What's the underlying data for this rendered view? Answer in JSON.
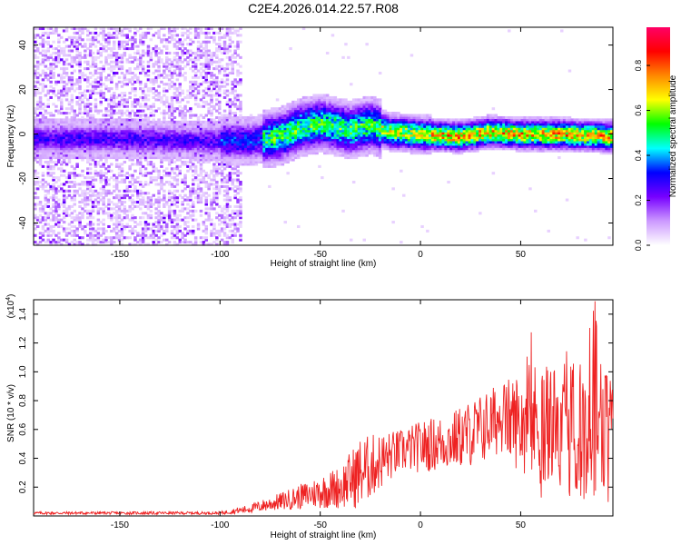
{
  "title": "C2E4.2026.014.22.57.R08",
  "chart_data": [
    {
      "type": "heatmap",
      "xlabel": "Height of straight line (km)",
      "ylabel": "Frequency (Hz)",
      "xlim": [
        -193,
        96
      ],
      "ylim": [
        -50,
        48
      ],
      "xticks": [
        -150,
        -100,
        -50,
        0,
        50
      ],
      "yticks": [
        -40,
        -20,
        0,
        20,
        40
      ],
      "colorbar": {
        "label": "Normalized spectral amplitude",
        "range": [
          0,
          0.97
        ],
        "ticks": [
          "0.0",
          "0.2",
          "0.4",
          "0.6",
          "0.8"
        ],
        "tick_values": [
          0.0,
          0.2,
          0.4,
          0.6,
          0.8
        ],
        "colors": [
          "#ffffff",
          "#cc99ff",
          "#7700ff",
          "#0000ff",
          "#00ffff",
          "#00ff00",
          "#ffff00",
          "#ff8800",
          "#ff0000",
          "#ff0066"
        ]
      },
      "ridge_center_hz": [
        {
          "x": -193,
          "y": -2
        },
        {
          "x": -150,
          "y": -2
        },
        {
          "x": -100,
          "y": -3
        },
        {
          "x": -85,
          "y": -3
        },
        {
          "x": -70,
          "y": -1
        },
        {
          "x": -60,
          "y": 3
        },
        {
          "x": -50,
          "y": 5
        },
        {
          "x": -45,
          "y": 4
        },
        {
          "x": -35,
          "y": 2
        },
        {
          "x": -25,
          "y": 4
        },
        {
          "x": -15,
          "y": 1
        },
        {
          "x": 0,
          "y": 0
        },
        {
          "x": 20,
          "y": -1
        },
        {
          "x": 35,
          "y": 1
        },
        {
          "x": 50,
          "y": 0
        },
        {
          "x": 70,
          "y": 0
        },
        {
          "x": 96,
          "y": -1
        }
      ],
      "background_noise_range_km": [
        -193,
        -90
      ]
    },
    {
      "type": "line",
      "color": "#ee2222",
      "xlabel": "Height of straight line (km)",
      "ylabel": "SNR (10 * v/v)",
      "scale_label": "(x10",
      "scale_exponent": "4",
      "scale_suffix": ")",
      "xlim": [
        -193,
        96
      ],
      "ylim": [
        0,
        1.5
      ],
      "xticks": [
        -150,
        -100,
        -50,
        0,
        50
      ],
      "yticks": [
        "0.2",
        "0.4",
        "0.6",
        "0.8",
        "1.0",
        "1.2",
        "1.4"
      ],
      "ytick_values": [
        0.2,
        0.4,
        0.6,
        0.8,
        1.0,
        1.2,
        1.4
      ],
      "envelope": [
        {
          "x": -193,
          "base": 0.02,
          "amp": 0.01
        },
        {
          "x": -100,
          "base": 0.02,
          "amp": 0.01
        },
        {
          "x": -85,
          "base": 0.05,
          "amp": 0.03
        },
        {
          "x": -70,
          "base": 0.1,
          "amp": 0.06
        },
        {
          "x": -55,
          "base": 0.15,
          "amp": 0.1
        },
        {
          "x": -40,
          "base": 0.2,
          "amp": 0.15
        },
        {
          "x": -30,
          "base": 0.3,
          "amp": 0.25
        },
        {
          "x": -20,
          "base": 0.38,
          "amp": 0.2
        },
        {
          "x": -10,
          "base": 0.45,
          "amp": 0.15
        },
        {
          "x": 0,
          "base": 0.48,
          "amp": 0.18
        },
        {
          "x": 15,
          "base": 0.52,
          "amp": 0.2
        },
        {
          "x": 30,
          "base": 0.6,
          "amp": 0.25
        },
        {
          "x": 40,
          "base": 0.68,
          "amp": 0.25
        },
        {
          "x": 50,
          "base": 0.65,
          "amp": 0.35
        },
        {
          "x": 60,
          "base": 0.65,
          "amp": 0.45
        },
        {
          "x": 70,
          "base": 0.62,
          "amp": 0.45
        },
        {
          "x": 80,
          "base": 0.6,
          "amp": 0.5
        },
        {
          "x": 86,
          "base": 0.7,
          "amp": 0.7
        },
        {
          "x": 90,
          "base": 0.6,
          "amp": 0.5
        },
        {
          "x": 96,
          "base": 0.75,
          "amp": 0.15
        }
      ]
    }
  ]
}
